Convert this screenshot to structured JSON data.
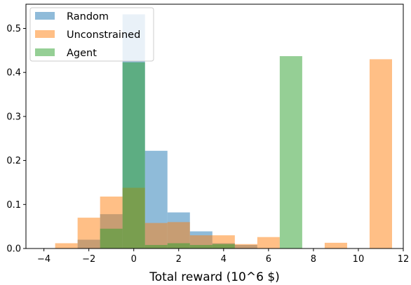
{
  "chart_data": {
    "type": "bar",
    "title": "",
    "xlabel": "Total reward (10^6 $)",
    "ylabel": "",
    "xlim": [
      -4.8,
      12.0
    ],
    "ylim": [
      0,
      0.555
    ],
    "xticks": [
      -4,
      -2,
      0,
      2,
      4,
      6,
      8,
      10,
      12
    ],
    "yticks": [
      0.0,
      0.1,
      0.2,
      0.3,
      0.4,
      0.5
    ],
    "xtick_labels": [
      "−4",
      "−2",
      "0",
      "2",
      "4",
      "6",
      "8",
      "10",
      "12"
    ],
    "ytick_labels": [
      "0.0",
      "0.1",
      "0.2",
      "0.3",
      "0.4",
      "0.5"
    ],
    "grid": false,
    "legend_position": "top-left",
    "series": [
      {
        "name": "Random",
        "color": "#1f77b4",
        "opacity": 0.5,
        "bin_width": 1.0,
        "bins": [
          {
            "x0": -2.5,
            "value": 0.02
          },
          {
            "x0": -1.5,
            "value": 0.078
          },
          {
            "x0": -0.5,
            "value": 0.532
          },
          {
            "x0": 0.5,
            "value": 0.222
          },
          {
            "x0": 1.5,
            "value": 0.082
          },
          {
            "x0": 2.5,
            "value": 0.039
          },
          {
            "x0": 3.5,
            "value": 0.012
          },
          {
            "x0": 4.5,
            "value": 0.008
          }
        ]
      },
      {
        "name": "Unconstrained",
        "color": "#ff7f0e",
        "opacity": 0.5,
        "bin_width": 1.0,
        "bins": [
          {
            "x0": -3.5,
            "value": 0.012
          },
          {
            "x0": -2.5,
            "value": 0.07
          },
          {
            "x0": -1.5,
            "value": 0.118
          },
          {
            "x0": -0.5,
            "value": 0.138
          },
          {
            "x0": 0.5,
            "value": 0.058
          },
          {
            "x0": 1.5,
            "value": 0.06
          },
          {
            "x0": 2.5,
            "value": 0.03
          },
          {
            "x0": 3.5,
            "value": 0.03
          },
          {
            "x0": 4.5,
            "value": 0.01
          },
          {
            "x0": 5.5,
            "value": 0.026
          },
          {
            "x0": 6.5,
            "value": 0.0
          },
          {
            "x0": 7.5,
            "value": 0.0
          },
          {
            "x0": 8.5,
            "value": 0.013
          },
          {
            "x0": 9.5,
            "value": 0.0
          },
          {
            "x0": 10.5,
            "value": 0.43
          }
        ]
      },
      {
        "name": "Agent",
        "color": "#2ca02c",
        "opacity": 0.5,
        "bin_width": 1.0,
        "bins": [
          {
            "x0": -1.5,
            "value": 0.045
          },
          {
            "x0": -0.5,
            "value": 0.423
          },
          {
            "x0": 0.5,
            "value": 0.008
          },
          {
            "x0": 1.5,
            "value": 0.012
          },
          {
            "x0": 2.5,
            "value": 0.008
          },
          {
            "x0": 3.5,
            "value": 0.01
          },
          {
            "x0": 6.5,
            "value": 0.437
          },
          {
            "x0": 7.5,
            "value": 0.0
          }
        ]
      }
    ]
  }
}
